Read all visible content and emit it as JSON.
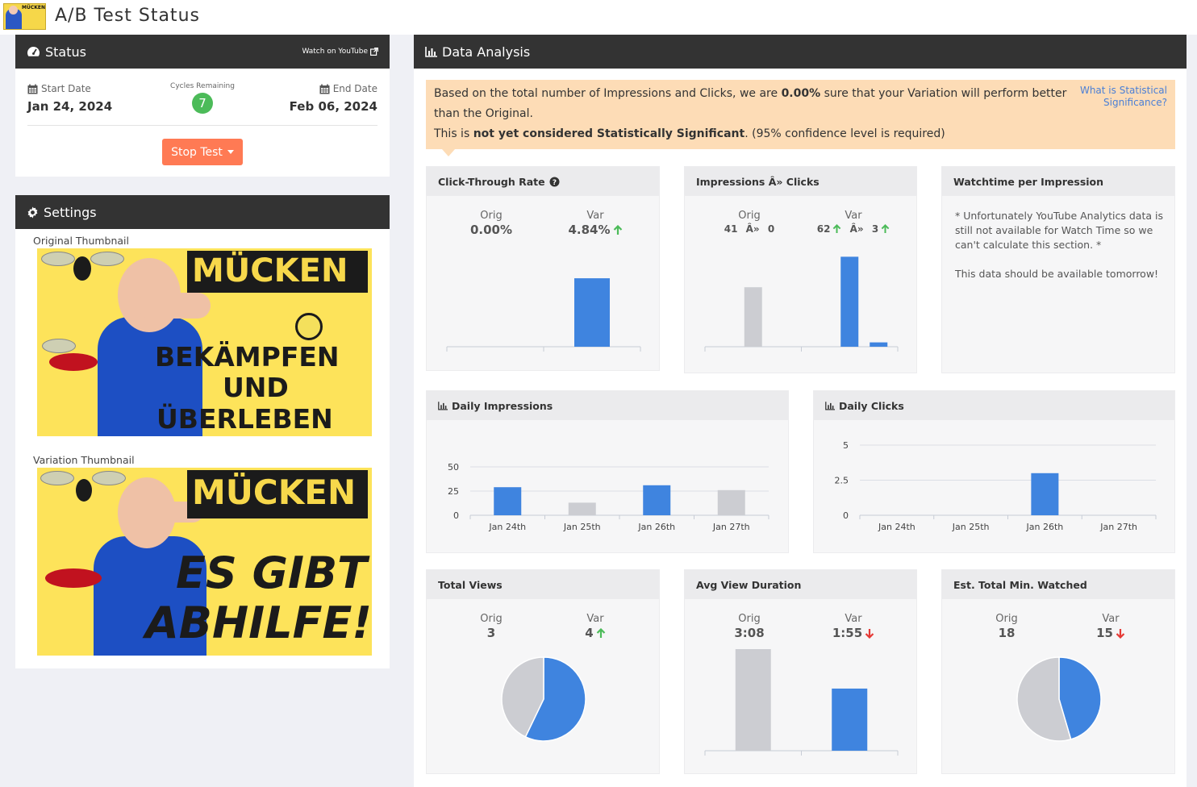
{
  "app": {
    "title": "A/B Test Status"
  },
  "status": {
    "title": "Status",
    "youtube_link": "Watch on YouTube",
    "start_label": "Start Date",
    "start_value": "Jan 24, 2024",
    "cycles_label": "Cycles Remaining",
    "cycles_value": "7",
    "end_label": "End Date",
    "end_value": "Feb 06, 2024",
    "stop_button": "Stop Test"
  },
  "settings": {
    "title": "Settings",
    "original_label": "Original Thumbnail",
    "variation_label": "Variation Thumbnail",
    "logo_text": "MÜCKEN",
    "original_text": {
      "l1": "MÜCKEN",
      "l2": "BEKÄMPFEN",
      "l3": "UND",
      "l4": "ÜBERLEBEN"
    },
    "variation_text": {
      "l1": "MÜCKEN",
      "l2": "ES GIBT",
      "l3": "ABHILFE!"
    }
  },
  "analysis": {
    "title": "Data Analysis",
    "callout": {
      "p1": "Based on the total number of Impressions and Clicks, we are ",
      "p1_bold": "0.00%",
      "p1_end": " sure that your Variation will perform better than the Original.",
      "p2": "This is ",
      "p2_bold": "not yet considered Statistically Significant",
      "p2_end": ". (95% confidence level is required)",
      "help_link": "What is Statistical Significance?"
    },
    "labels": {
      "orig": "Orig",
      "var": "Var"
    },
    "ctr": {
      "title": "Click-Through Rate",
      "orig": "0.00%",
      "var": "4.84%"
    },
    "imp_clicks": {
      "title": "Impressions Â» Clicks",
      "orig_imp": "41",
      "orig_sep": "Â»",
      "orig_clicks": "0",
      "var_imp": "62",
      "var_sep": "Â»",
      "var_clicks": "3"
    },
    "watchtime": {
      "title": "Watchtime per Impression",
      "note1": "* Unfortunately YouTube Analytics data is still not available for Watch Time so we can't calculate this section. *",
      "note2": "This data should be available tomorrow!"
    },
    "daily_impressions": {
      "title": "Daily Impressions"
    },
    "daily_clicks": {
      "title": "Daily Clicks"
    },
    "total_views": {
      "title": "Total Views",
      "orig": "3",
      "var": "4"
    },
    "avg_duration": {
      "title": "Avg View Duration",
      "orig": "3:08",
      "var": "1:55"
    },
    "est_minutes": {
      "title": "Est. Total Min. Watched",
      "orig": "18",
      "var": "15"
    }
  },
  "colors": {
    "orig": "#cccdd2",
    "var": "#3f84df",
    "up": "#4cbb59",
    "down": "#e53935",
    "accent_btn": "#ff7a54"
  },
  "chart_data": [
    {
      "type": "bar",
      "name": "ctr",
      "categories": [
        "Orig",
        "Var"
      ],
      "values": [
        0.0,
        4.84
      ],
      "ylim": [
        0,
        5.7
      ]
    },
    {
      "type": "bar",
      "name": "impressions-clicks",
      "categories": [
        "Orig",
        "Var"
      ],
      "series": [
        {
          "values": [
            41,
            62
          ]
        },
        {
          "values": [
            0,
            3
          ]
        }
      ],
      "ylim": [
        0,
        70
      ]
    },
    {
      "type": "bar",
      "name": "daily-impressions",
      "categories": [
        "Jan 24th",
        "Jan 25th",
        "Jan 26th",
        "Jan 27th"
      ],
      "values": [
        29,
        13,
        31,
        26
      ],
      "colors": [
        "var",
        "orig",
        "var",
        "orig"
      ],
      "yticks": [
        "0",
        "25",
        "50"
      ],
      "ylim": [
        0,
        50
      ],
      "grid": true
    },
    {
      "type": "bar",
      "name": "daily-clicks",
      "categories": [
        "Jan 24th",
        "Jan 25th",
        "Jan 26th",
        "Jan 27th"
      ],
      "values": [
        0,
        0,
        3,
        0
      ],
      "colors": [
        "var",
        "orig",
        "var",
        "orig"
      ],
      "yticks": [
        "0",
        "2.5",
        "5"
      ],
      "ylim": [
        0,
        5
      ],
      "grid": true
    },
    {
      "type": "pie",
      "name": "total-views",
      "categories": [
        "Orig",
        "Var"
      ],
      "values": [
        3,
        4
      ]
    },
    {
      "type": "bar",
      "name": "avg-duration",
      "categories": [
        "Orig",
        "Var"
      ],
      "values": [
        188,
        115
      ],
      "ylim": [
        0,
        188
      ]
    },
    {
      "type": "pie",
      "name": "est-minutes",
      "categories": [
        "Orig",
        "Var"
      ],
      "values": [
        18,
        15
      ]
    }
  ]
}
